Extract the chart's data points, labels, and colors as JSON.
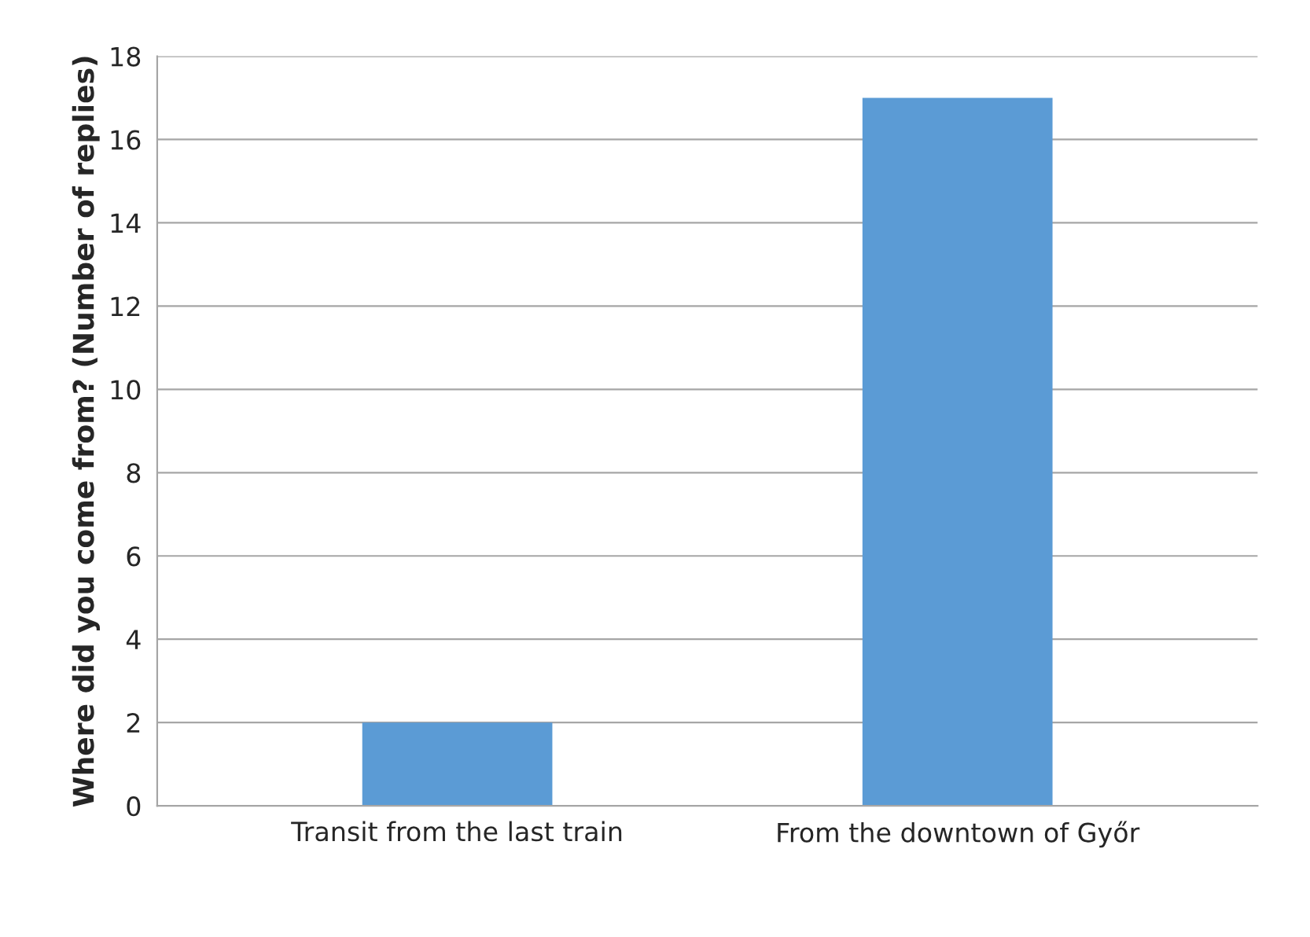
{
  "chart_data": {
    "type": "bar",
    "ylabel": "Where did you come from? (Number of replies)",
    "categories": [
      "Transit from the last train",
      "From the downtown of Győr"
    ],
    "values": [
      2,
      17
    ],
    "color": "#5b9bd5",
    "ylim": [
      0,
      18
    ],
    "yticks": [
      0,
      2,
      4,
      6,
      8,
      10,
      12,
      14,
      16,
      18
    ],
    "grid": "y"
  }
}
